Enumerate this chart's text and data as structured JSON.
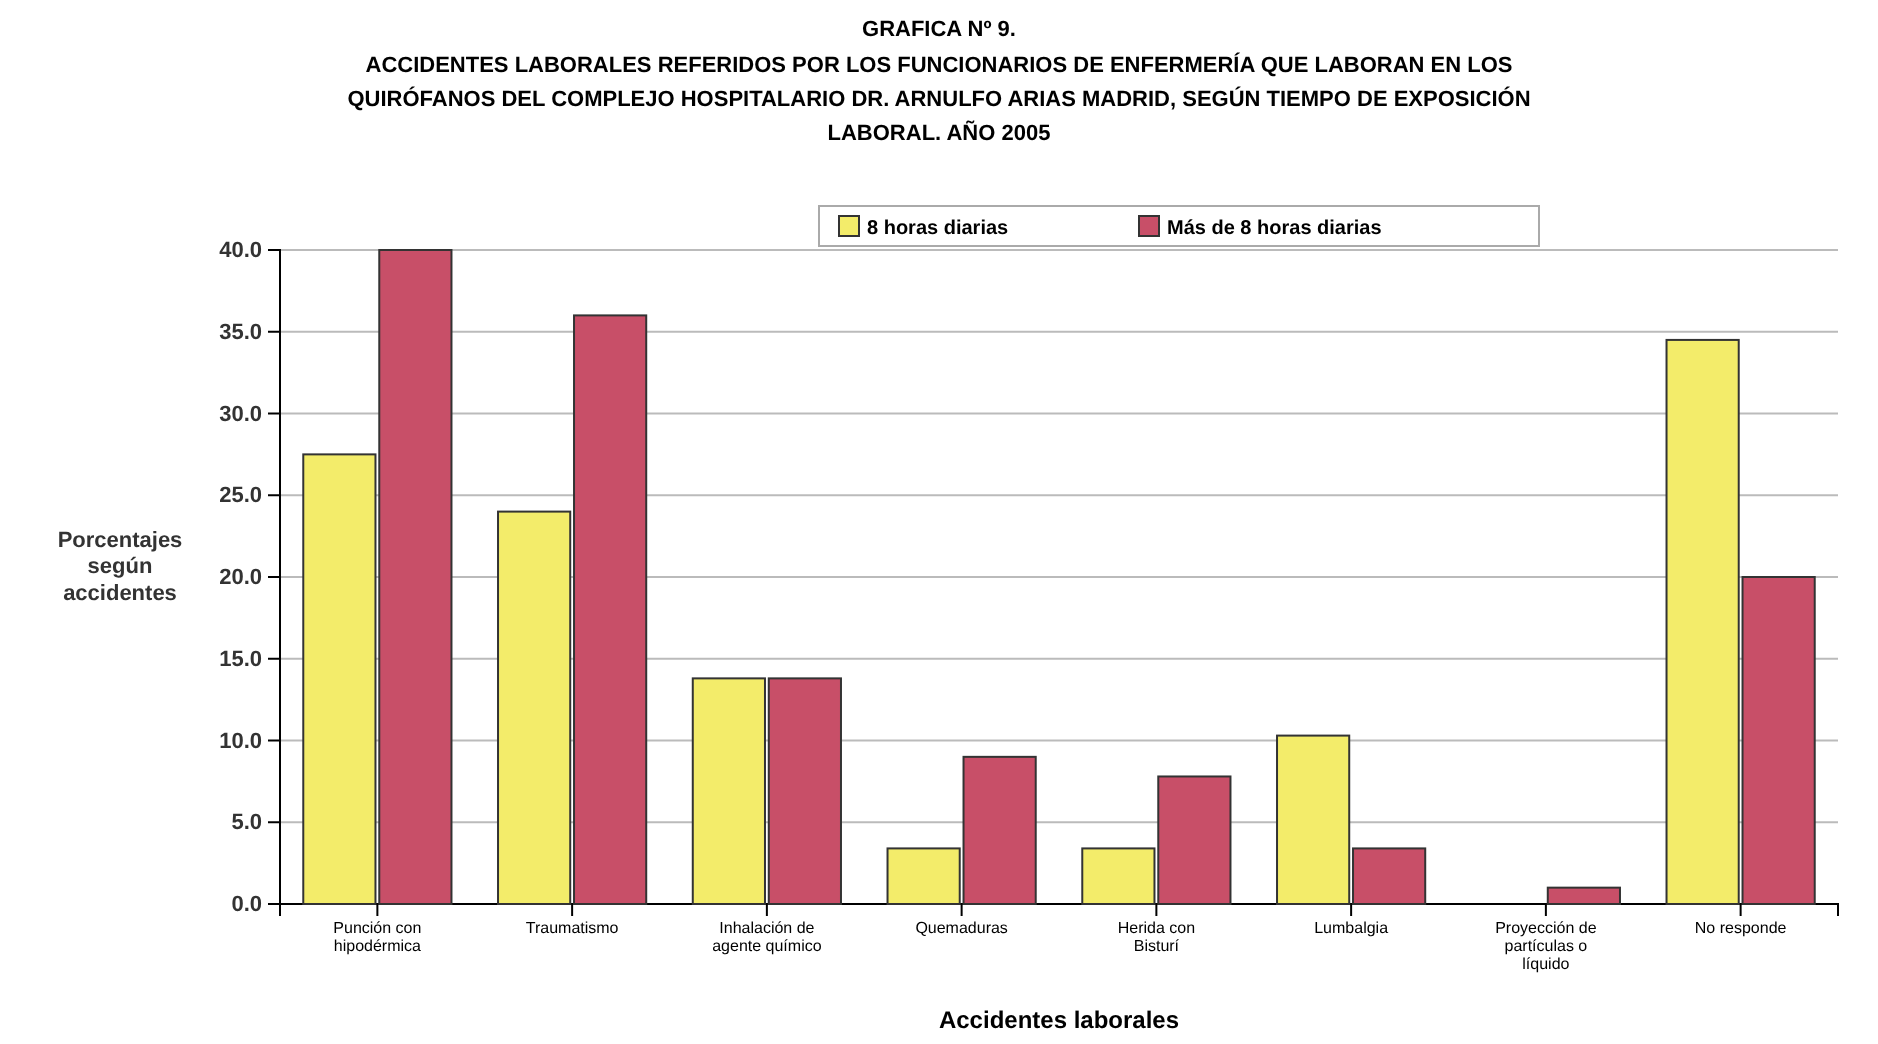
{
  "chart_data": {
    "type": "bar",
    "title": "GRAFICA Nº 9.",
    "subtitle": "ACCIDENTES LABORALES REFERIDOS POR LOS FUNCIONARIOS DE ENFERMERÍA QUE LABORAN EN LOS QUIRÓFANOS DEL COMPLEJO HOSPITALARIO DR. ARNULFO ARIAS MADRID, SEGÚN TIEMPO DE EXPOSICIÓN LABORAL. AÑO 2005",
    "xlabel": "Accidentes laborales",
    "ylabel": "Porcentajes según accidentes",
    "categories": [
      "Punción con hipodérmica",
      "Traumatismo",
      "Inhalación de agente químico",
      "Quemaduras",
      "Herida con Bisturí",
      "Lumbalgia",
      "Proyección de partículas o líquido",
      "No responde"
    ],
    "series": [
      {
        "name": "8 horas diarias",
        "color": "#f3ec6a",
        "values": [
          27.5,
          24.0,
          13.8,
          3.4,
          3.4,
          10.3,
          0,
          34.5
        ]
      },
      {
        "name": "Más de 8 horas diarias",
        "color": "#c84f68",
        "values": [
          40.0,
          36.0,
          13.8,
          9.0,
          7.8,
          3.4,
          1.0,
          20.0
        ]
      }
    ],
    "ylim": [
      0,
      40
    ],
    "yticks": [
      {
        "value": 0,
        "label": "0.0"
      },
      {
        "value": 5,
        "label": "5.0"
      },
      {
        "value": 10,
        "label": "10.0"
      },
      {
        "value": 15,
        "label": "15.0"
      },
      {
        "value": 20,
        "label": "20.0"
      },
      {
        "value": 25,
        "label": "25.0"
      },
      {
        "value": 30,
        "label": "30.0"
      },
      {
        "value": 35,
        "label": "35.0"
      },
      {
        "value": 40,
        "label": "40.0"
      }
    ],
    "grid": "y",
    "legend": "top"
  }
}
